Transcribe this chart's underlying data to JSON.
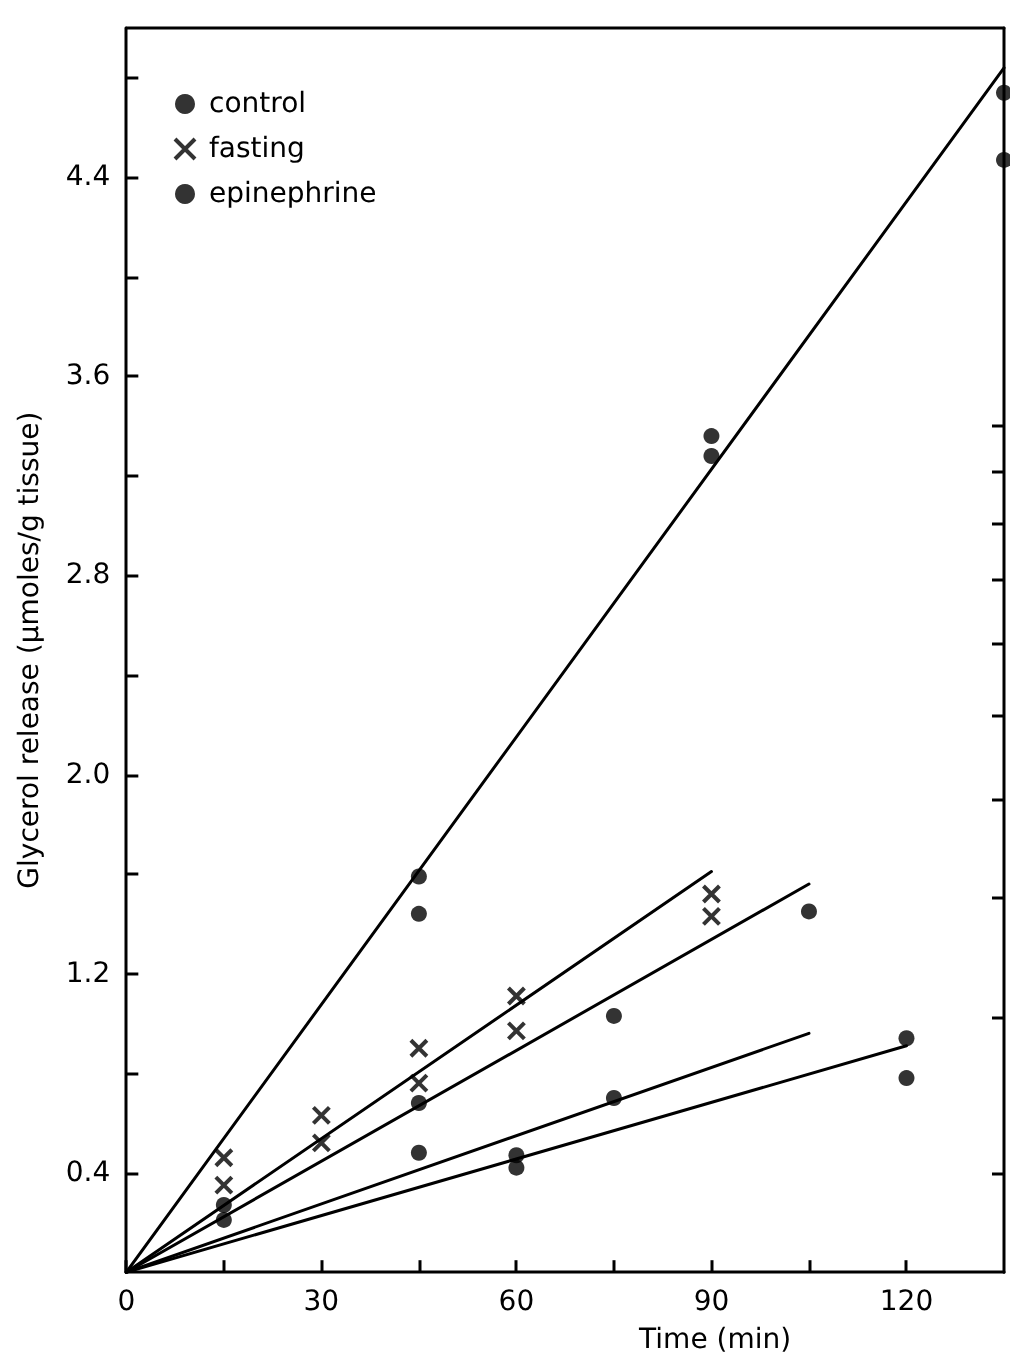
{
  "chart_data": {
    "type": "scatter",
    "xlabel": "Time (min)",
    "ylabel": "Glycerol release (µmoles/g tissue)",
    "xlim": [
      0,
      135
    ],
    "ylim": [
      0,
      5.0
    ],
    "xticks": [
      0,
      {
        "value": 15,
        "label": null
      },
      30,
      {
        "value": 45,
        "label": null
      },
      60,
      {
        "value": 75,
        "label": null
      },
      90,
      {
        "value": 105,
        "label": null
      },
      120
    ],
    "yticks": [
      0.4,
      {
        "value": 0.8,
        "label": null
      },
      1.2,
      {
        "value": 1.6,
        "label": null
      },
      {
        "value": 2,
        "label": "2.0"
      },
      {
        "value": 2.4,
        "label": null
      },
      2.8,
      {
        "value": 3.2,
        "label": null
      },
      3.6,
      {
        "value": 4.0,
        "label": null
      },
      4.4,
      {
        "value": 4.8,
        "label": null
      }
    ],
    "grid": false,
    "legend": "top left",
    "series": [
      {
        "name": "control",
        "color": "#000000",
        "marker": "circle",
        "x": [
          15,
          15,
          45,
          45,
          60,
          60,
          75,
          75,
          105,
          120,
          120
        ],
        "values": [
          0.27,
          0.21,
          0.68,
          0.48,
          0.47,
          0.42,
          1.03,
          0.7,
          1.45,
          0.94,
          0.78
        ]
      },
      {
        "name": "fasting",
        "color": "#000000",
        "marker": "cross",
        "x": [
          15,
          15,
          30,
          30,
          45,
          45,
          60,
          60,
          90,
          90
        ],
        "values": [
          0.46,
          0.35,
          0.63,
          0.52,
          0.9,
          0.76,
          1.11,
          0.97,
          1.52,
          1.43
        ]
      },
      {
        "name": "epinephrine",
        "color": "#000000",
        "marker": "circle",
        "x": [
          45,
          45,
          90,
          90,
          135,
          135
        ],
        "values": [
          1.59,
          1.44,
          3.36,
          3.28,
          4.74,
          4.47
        ]
      },
      {
        "type": "line",
        "color": "#000000",
        "marker": "none",
        "x": [
          0,
          135
        ],
        "values": [
          0,
          4.84
        ]
      },
      {
        "type": "line",
        "color": "#000000",
        "marker": "none",
        "x": [
          0,
          90
        ],
        "values": [
          0,
          1.61
        ]
      },
      {
        "type": "line",
        "color": "#000000",
        "marker": "none",
        "x": [
          0,
          105
        ],
        "values": [
          0,
          1.56
        ]
      },
      {
        "type": "line",
        "color": "#000000",
        "marker": "none",
        "x": [
          0,
          105
        ],
        "values": [
          0,
          0.96
        ]
      },
      {
        "type": "line",
        "color": "#000000",
        "marker": "none",
        "x": [
          0,
          120
        ],
        "values": [
          0,
          0.91
        ]
      }
    ]
  }
}
